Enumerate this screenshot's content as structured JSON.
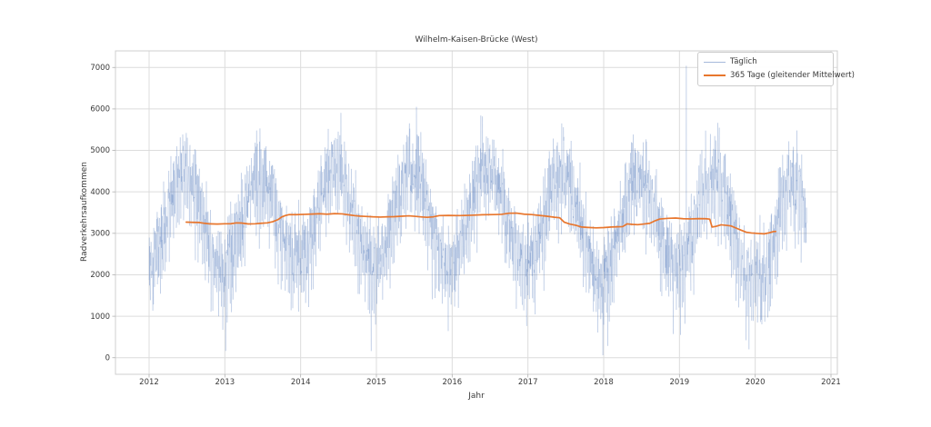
{
  "figure": {
    "background": "#ffffff"
  },
  "chart_data": {
    "type": "line",
    "title": "Wilhelm-Kaisen-Brücke (West)",
    "xlabel": "Jahr",
    "ylabel": "Radverkehrsaufkommen",
    "x_ticks": [
      2012,
      2013,
      2014,
      2015,
      2016,
      2017,
      2018,
      2019,
      2020,
      2021
    ],
    "y_ticks": [
      0,
      1000,
      2000,
      3000,
      4000,
      5000,
      6000,
      7000
    ],
    "xlim": [
      2011.556,
      2021.084
    ],
    "ylim": [
      -400,
      7400
    ],
    "grid": true,
    "grid_color": "#dcdcdc",
    "spine_color": "#cfcfcf",
    "tick_color": "#b0b0b0",
    "text_color": "#3a3a3a",
    "legend_position": "upper right",
    "series": [
      {
        "name": "Täglich",
        "type": "daily_noisy",
        "color": "#5b7fbe",
        "opacity": 0.25,
        "line_width": 0.8,
        "seed": 20120101,
        "start": 2012.0,
        "end": 2020.68,
        "per_year": 365,
        "seasonal_amplitude": 1150,
        "seasonal_peak_frac": 0.46,
        "weekday_offset": 190,
        "weekend_offset": -680,
        "noise_sigma": 430,
        "winter_dip_prob": 0.05,
        "winter_dip_max": 1100,
        "min": 40,
        "max": 7380,
        "events": [
          {
            "from": 2020.08,
            "to": 2020.32,
            "offset": -750
          }
        ],
        "outliers": [
          [
            2013.42,
            5480
          ],
          [
            2015.53,
            6050
          ],
          [
            2017.99,
            60
          ],
          [
            2019.09,
            7040
          ],
          [
            2020.55,
            5480
          ]
        ]
      },
      {
        "name": "365 Tage (gleitender Mittelwert)",
        "type": "rolling_mean",
        "color": "#e8762d",
        "line_width": 1.7,
        "points": [
          [
            2012.49,
            3270
          ],
          [
            2012.58,
            3265
          ],
          [
            2012.66,
            3262
          ],
          [
            2012.73,
            3242
          ],
          [
            2012.8,
            3228
          ],
          [
            2012.9,
            3224
          ],
          [
            2013.0,
            3230
          ],
          [
            2013.08,
            3232
          ],
          [
            2013.15,
            3252
          ],
          [
            2013.22,
            3248
          ],
          [
            2013.31,
            3226
          ],
          [
            2013.4,
            3230
          ],
          [
            2013.48,
            3242
          ],
          [
            2013.56,
            3252
          ],
          [
            2013.63,
            3280
          ],
          [
            2013.7,
            3330
          ],
          [
            2013.75,
            3395
          ],
          [
            2013.8,
            3430
          ],
          [
            2013.85,
            3452
          ],
          [
            2013.95,
            3450
          ],
          [
            2014.05,
            3458
          ],
          [
            2014.15,
            3465
          ],
          [
            2014.25,
            3472
          ],
          [
            2014.35,
            3462
          ],
          [
            2014.45,
            3475
          ],
          [
            2014.55,
            3468
          ],
          [
            2014.65,
            3442
          ],
          [
            2014.71,
            3428
          ],
          [
            2014.78,
            3415
          ],
          [
            2014.85,
            3408
          ],
          [
            2014.95,
            3398
          ],
          [
            2015.05,
            3392
          ],
          [
            2015.15,
            3398
          ],
          [
            2015.23,
            3402
          ],
          [
            2015.33,
            3412
          ],
          [
            2015.43,
            3422
          ],
          [
            2015.52,
            3408
          ],
          [
            2015.6,
            3395
          ],
          [
            2015.67,
            3386
          ],
          [
            2015.75,
            3398
          ],
          [
            2015.83,
            3428
          ],
          [
            2015.95,
            3432
          ],
          [
            2016.1,
            3428
          ],
          [
            2016.25,
            3436
          ],
          [
            2016.4,
            3448
          ],
          [
            2016.55,
            3452
          ],
          [
            2016.65,
            3458
          ],
          [
            2016.75,
            3485
          ],
          [
            2016.85,
            3488
          ],
          [
            2016.95,
            3462
          ],
          [
            2017.05,
            3452
          ],
          [
            2017.15,
            3432
          ],
          [
            2017.25,
            3412
          ],
          [
            2017.35,
            3388
          ],
          [
            2017.42,
            3375
          ],
          [
            2017.48,
            3268
          ],
          [
            2017.55,
            3225
          ],
          [
            2017.63,
            3195
          ],
          [
            2017.71,
            3152
          ],
          [
            2017.8,
            3142
          ],
          [
            2017.9,
            3132
          ],
          [
            2018.0,
            3138
          ],
          [
            2018.1,
            3152
          ],
          [
            2018.18,
            3158
          ],
          [
            2018.25,
            3162
          ],
          [
            2018.31,
            3228
          ],
          [
            2018.38,
            3215
          ],
          [
            2018.45,
            3208
          ],
          [
            2018.52,
            3222
          ],
          [
            2018.61,
            3242
          ],
          [
            2018.68,
            3305
          ],
          [
            2018.74,
            3345
          ],
          [
            2018.85,
            3362
          ],
          [
            2018.95,
            3368
          ],
          [
            2019.05,
            3352
          ],
          [
            2019.15,
            3348
          ],
          [
            2019.25,
            3355
          ],
          [
            2019.35,
            3352
          ],
          [
            2019.4,
            3342
          ],
          [
            2019.43,
            3152
          ],
          [
            2019.48,
            3168
          ],
          [
            2019.55,
            3205
          ],
          [
            2019.62,
            3192
          ],
          [
            2019.68,
            3178
          ],
          [
            2019.75,
            3125
          ],
          [
            2019.82,
            3072
          ],
          [
            2019.88,
            3028
          ],
          [
            2019.95,
            3008
          ],
          [
            2020.05,
            2995
          ],
          [
            2020.12,
            2988
          ],
          [
            2020.18,
            3012
          ],
          [
            2020.24,
            3042
          ],
          [
            2020.27,
            3045
          ]
        ]
      }
    ]
  }
}
